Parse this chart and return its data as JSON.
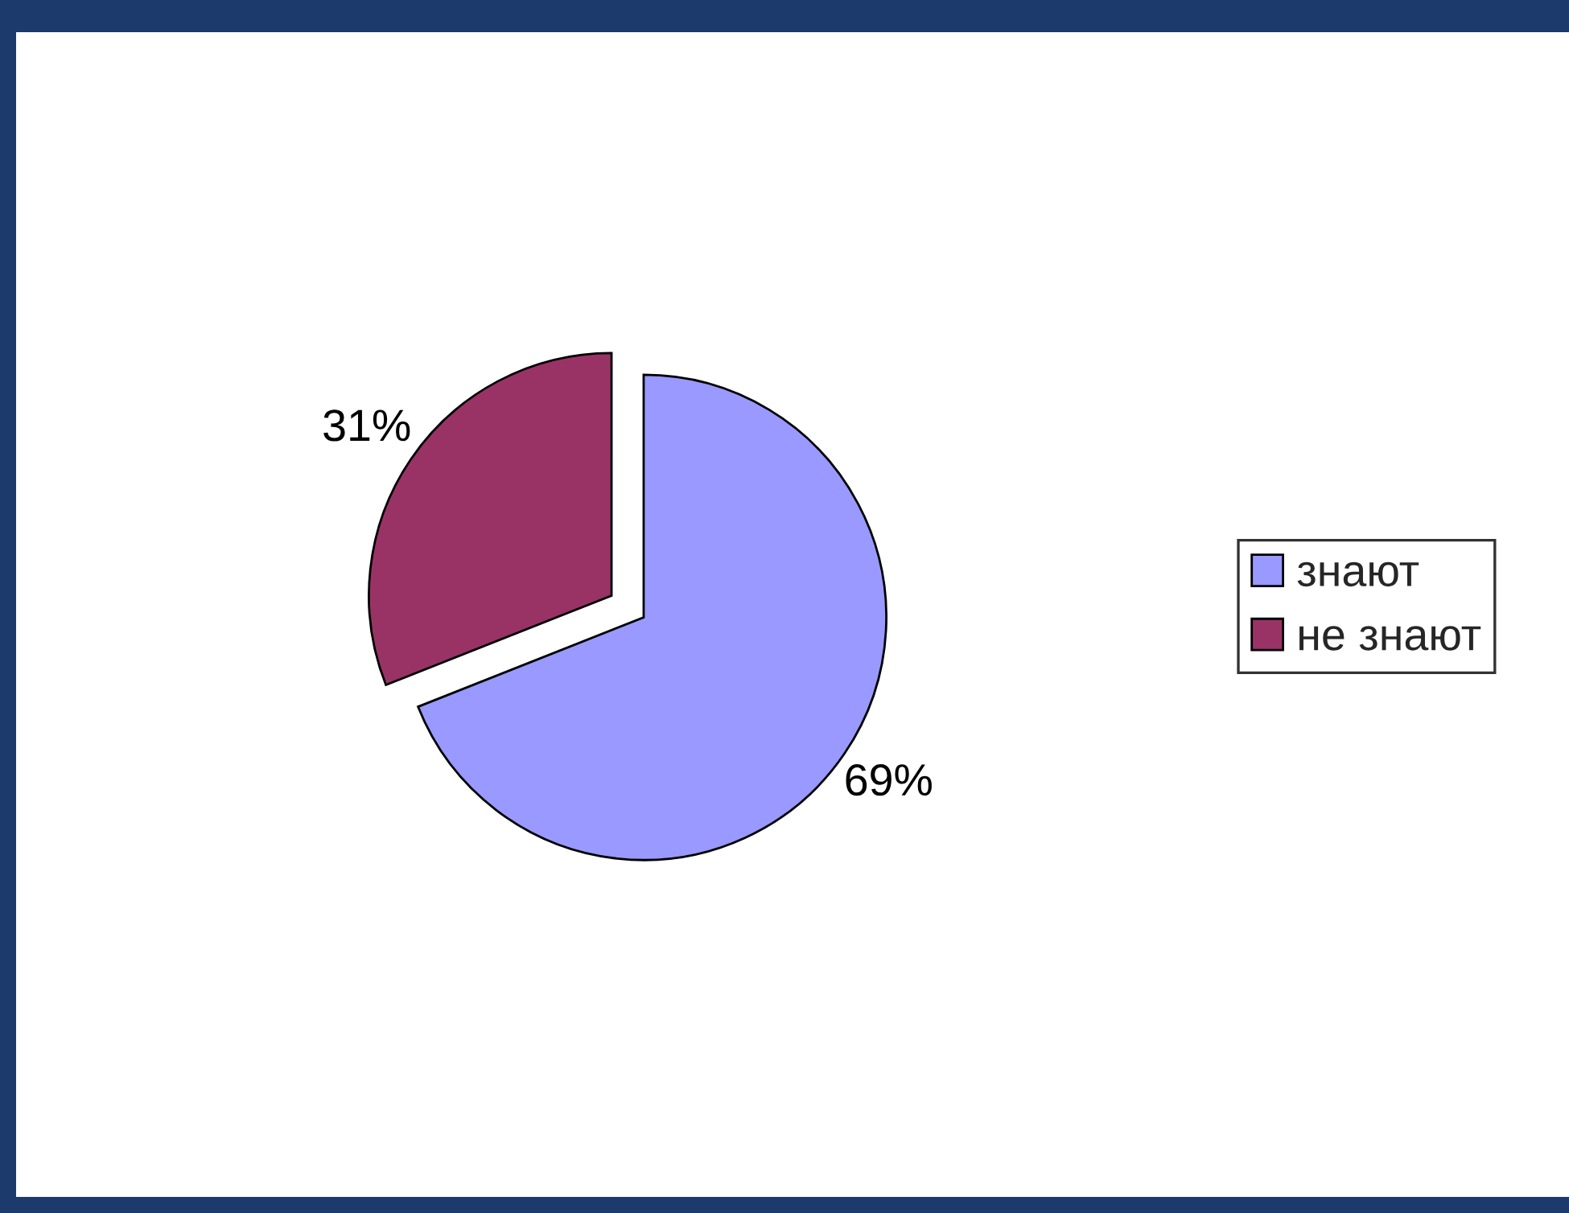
{
  "chart_data": {
    "type": "pie",
    "categories": [
      "знают",
      "не знают"
    ],
    "values": [
      69,
      31
    ],
    "colors": [
      "#9999ff",
      "#993366"
    ],
    "value_labels": [
      "69%",
      "31%"
    ],
    "legend": "right"
  }
}
